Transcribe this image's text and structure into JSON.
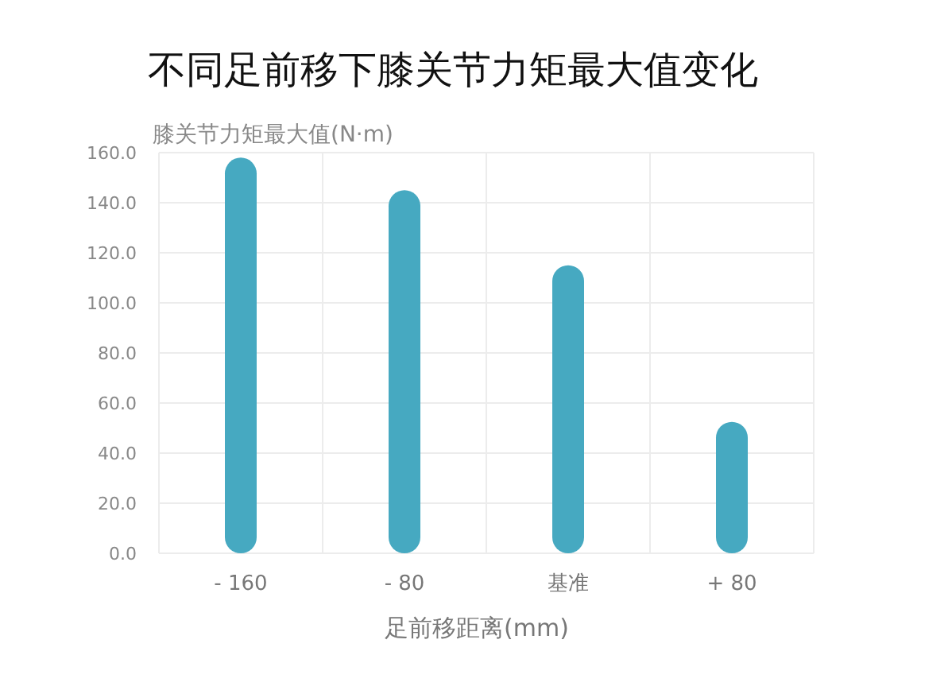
{
  "chart_data": {
    "type": "bar",
    "title": "不同足前移下膝关节力矩最大值变化",
    "ylabel": "膝关节力矩最大值(N·m)",
    "xlabel": "足前移距离(mm)",
    "categories": [
      "- 160",
      "- 80",
      "基准",
      "+ 80"
    ],
    "values": [
      158,
      145,
      115,
      52.5
    ],
    "color": "#46a9c1",
    "ylim": [
      0,
      160
    ],
    "yticks": [
      {
        "value": 0,
        "label": "0.0"
      },
      {
        "value": 20,
        "label": "20.0"
      },
      {
        "value": 40,
        "label": "40.0"
      },
      {
        "value": 60,
        "label": "60.0"
      },
      {
        "value": 80,
        "label": "80.0"
      },
      {
        "value": 100,
        "label": "100.0"
      },
      {
        "value": 120,
        "label": "120.0"
      },
      {
        "value": 140,
        "label": "140.0"
      },
      {
        "value": 160,
        "label": "160.0"
      }
    ],
    "grid": true
  }
}
